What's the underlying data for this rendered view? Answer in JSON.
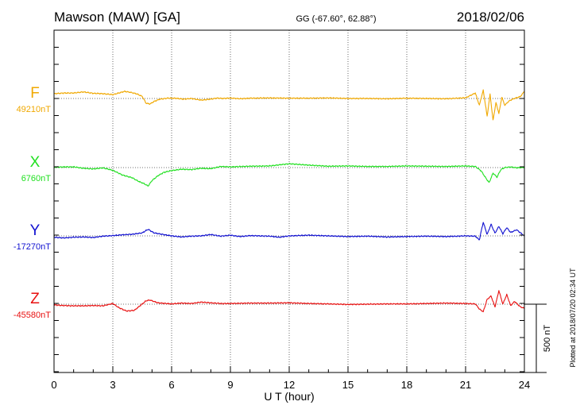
{
  "header": {
    "station": "Mawson (MAW)  [GA]",
    "coords": "GG (-67.60°,  62.88°)",
    "date": "2018/02/06"
  },
  "side_note": "Plotted at 2018/07/20 02:34 UT",
  "chart_data": {
    "type": "line",
    "xlabel": "U T (hour)",
    "xlim": [
      0,
      24
    ],
    "x_ticks": [
      0,
      3,
      6,
      9,
      12,
      15,
      18,
      21,
      24
    ],
    "x_tick_labels": [
      "0",
      "3",
      "6",
      "9",
      "12",
      "15",
      "18",
      "21",
      "24"
    ],
    "scale_bar": {
      "label": "500 nT",
      "value_nT": 500
    },
    "grid": "dotted vertical at every 3 hours; dotted baseline per component",
    "series": [
      {
        "name": "F",
        "baseline_label": "49210nT",
        "baseline_nT": 49210,
        "color": "#f0a800",
        "x": [
          0,
          0.5,
          1,
          1.5,
          2,
          2.5,
          3,
          3.3,
          3.6,
          3.9,
          4.2,
          4.5,
          4.7,
          4.9,
          5.1,
          5.4,
          5.8,
          6.2,
          6.6,
          7,
          7.5,
          8,
          8.3,
          8.6,
          9,
          9.5,
          10,
          11,
          12,
          13,
          14,
          15,
          16,
          17,
          18,
          19,
          20,
          21,
          21.5,
          21.7,
          21.9,
          22.1,
          22.25,
          22.4,
          22.55,
          22.7,
          22.85,
          23,
          23.2,
          23.4,
          23.6,
          23.8,
          24
        ],
        "y": [
          49245,
          49250,
          49250,
          49258,
          49248,
          49245,
          49238,
          49250,
          49262,
          49255,
          49245,
          49225,
          49175,
          49170,
          49188,
          49205,
          49212,
          49212,
          49205,
          49210,
          49198,
          49205,
          49213,
          49210,
          49213,
          49208,
          49212,
          49214,
          49212,
          49212,
          49214,
          49210,
          49210,
          49208,
          49212,
          49210,
          49208,
          49215,
          49250,
          49160,
          49270,
          49080,
          49240,
          49050,
          49180,
          49100,
          49220,
          49160,
          49190,
          49205,
          49215,
          49225,
          49262
        ]
      },
      {
        "name": "X",
        "baseline_label": "6760nT",
        "baseline_nT": 6760,
        "color": "#20e020",
        "x": [
          0,
          0.5,
          1,
          1.5,
          2,
          2.5,
          3,
          3.5,
          4,
          4.3,
          4.6,
          4.8,
          5,
          5.3,
          5.6,
          6,
          6.5,
          7,
          7.5,
          8,
          8.5,
          9,
          10,
          11,
          12,
          13,
          14,
          15,
          16,
          17,
          18,
          19,
          20,
          21,
          21.5,
          21.8,
          22,
          22.2,
          22.4,
          22.6,
          22.8,
          23,
          23.3,
          23.6,
          24
        ],
        "y": [
          6762,
          6765,
          6765,
          6755,
          6750,
          6758,
          6740,
          6705,
          6685,
          6660,
          6642,
          6625,
          6665,
          6700,
          6725,
          6738,
          6748,
          6745,
          6755,
          6752,
          6768,
          6765,
          6770,
          6772,
          6788,
          6778,
          6770,
          6772,
          6768,
          6768,
          6772,
          6770,
          6768,
          6772,
          6768,
          6735,
          6690,
          6650,
          6720,
          6690,
          6745,
          6760,
          6765,
          6758,
          6762
        ]
      },
      {
        "name": "Y",
        "baseline_label": "-17270nT",
        "baseline_nT": -17270,
        "color": "#1010d0",
        "x": [
          0,
          0.5,
          1,
          1.5,
          2,
          2.5,
          3,
          3.5,
          4,
          4.5,
          4.8,
          5.1,
          5.5,
          6,
          6.5,
          7,
          7.5,
          8,
          8.5,
          9,
          9.5,
          10,
          11,
          11.5,
          12,
          13,
          14,
          15,
          16,
          17,
          18,
          19,
          20,
          21,
          21.5,
          21.7,
          21.9,
          22.1,
          22.3,
          22.5,
          22.7,
          22.9,
          23.1,
          23.3,
          23.6,
          24
        ],
        "y": [
          -17280,
          -17285,
          -17280,
          -17278,
          -17282,
          -17272,
          -17268,
          -17262,
          -17258,
          -17248,
          -17222,
          -17248,
          -17258,
          -17270,
          -17278,
          -17272,
          -17270,
          -17260,
          -17272,
          -17265,
          -17275,
          -17268,
          -17272,
          -17280,
          -17270,
          -17265,
          -17270,
          -17275,
          -17272,
          -17278,
          -17275,
          -17272,
          -17275,
          -17270,
          -17272,
          -17300,
          -17170,
          -17260,
          -17185,
          -17250,
          -17200,
          -17255,
          -17210,
          -17245,
          -17225,
          -17270
        ]
      },
      {
        "name": "Z",
        "baseline_label": "-45580nT",
        "baseline_nT": -45580,
        "color": "#e81010",
        "x": [
          0,
          0.5,
          1,
          1.5,
          2,
          2.5,
          3,
          3.3,
          3.7,
          4.1,
          4.4,
          4.7,
          4.9,
          5.3,
          6,
          6.5,
          7,
          7.5,
          8,
          8.5,
          9,
          10,
          11,
          12,
          13,
          14,
          15,
          16,
          17,
          18,
          19,
          20,
          21,
          21.5,
          21.7,
          21.9,
          22.1,
          22.3,
          22.5,
          22.7,
          22.9,
          23.1,
          23.3,
          23.5,
          23.8,
          24
        ],
        "y": [
          -45585,
          -45590,
          -45592,
          -45592,
          -45590,
          -45592,
          -45575,
          -45605,
          -45630,
          -45625,
          -45590,
          -45555,
          -45550,
          -45570,
          -45578,
          -45572,
          -45575,
          -45565,
          -45570,
          -45575,
          -45575,
          -45572,
          -45572,
          -45570,
          -45575,
          -45578,
          -45582,
          -45580,
          -45578,
          -45578,
          -45575,
          -45572,
          -45575,
          -45578,
          -45615,
          -45635,
          -45545,
          -45520,
          -45600,
          -45480,
          -45580,
          -45510,
          -45590,
          -45560,
          -45600,
          -45610
        ]
      }
    ]
  }
}
